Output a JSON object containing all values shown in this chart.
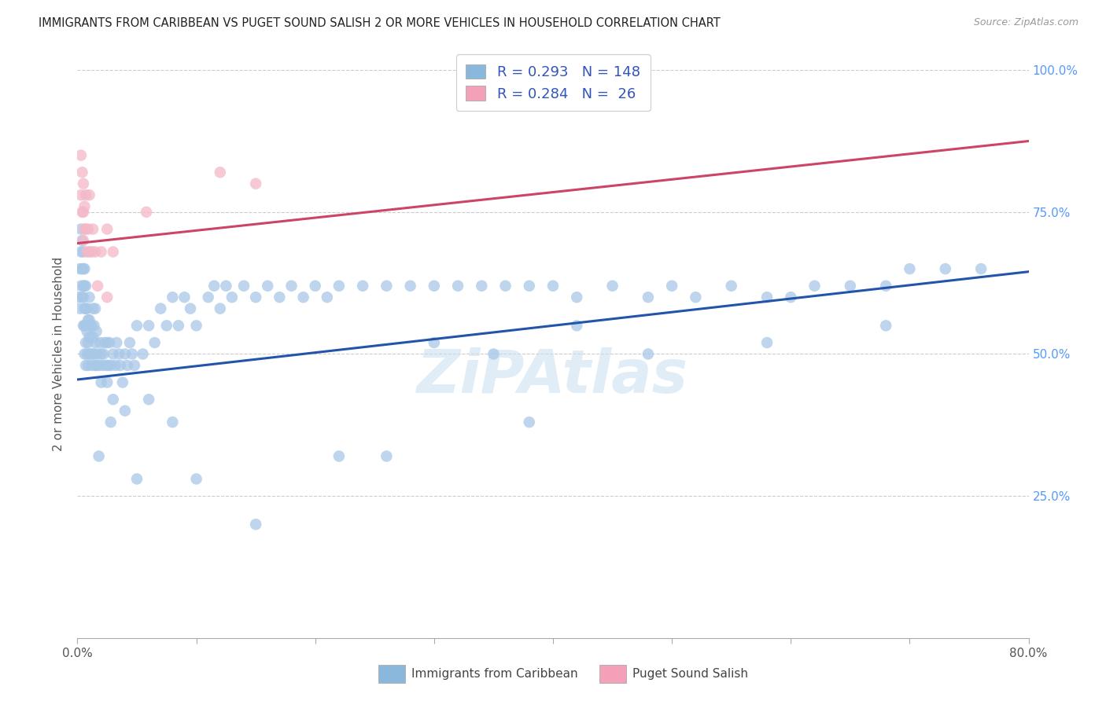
{
  "title": "IMMIGRANTS FROM CARIBBEAN VS PUGET SOUND SALISH 2 OR MORE VEHICLES IN HOUSEHOLD CORRELATION CHART",
  "source": "Source: ZipAtlas.com",
  "ylabel": "2 or more Vehicles in Household",
  "xlim": [
    0.0,
    0.8
  ],
  "ylim": [
    0.0,
    1.0
  ],
  "blue_color": "#a8c8e8",
  "pink_color": "#f4b8c8",
  "blue_line_color": "#2255aa",
  "pink_line_color": "#cc4466",
  "blue_legend_color": "#8ab8dc",
  "pink_legend_color": "#f4a0b8",
  "watermark": "ZiPAtlas",
  "legend_label_blue": "Immigrants from Caribbean",
  "legend_label_pink": "Puget Sound Salish",
  "blue_line_x0": 0.0,
  "blue_line_y0": 0.455,
  "blue_line_x1": 0.8,
  "blue_line_y1": 0.645,
  "pink_line_x0": 0.0,
  "pink_line_y0": 0.695,
  "pink_line_x1": 0.8,
  "pink_line_y1": 0.875,
  "blue_scatter_x": [
    0.001,
    0.002,
    0.002,
    0.003,
    0.003,
    0.003,
    0.004,
    0.004,
    0.004,
    0.005,
    0.005,
    0.005,
    0.005,
    0.005,
    0.006,
    0.006,
    0.006,
    0.006,
    0.006,
    0.007,
    0.007,
    0.007,
    0.007,
    0.007,
    0.008,
    0.008,
    0.008,
    0.009,
    0.009,
    0.009,
    0.01,
    0.01,
    0.01,
    0.01,
    0.011,
    0.011,
    0.012,
    0.012,
    0.013,
    0.013,
    0.013,
    0.014,
    0.014,
    0.015,
    0.015,
    0.015,
    0.016,
    0.016,
    0.017,
    0.018,
    0.019,
    0.02,
    0.02,
    0.021,
    0.022,
    0.023,
    0.024,
    0.025,
    0.025,
    0.026,
    0.027,
    0.028,
    0.03,
    0.03,
    0.032,
    0.033,
    0.035,
    0.036,
    0.038,
    0.04,
    0.042,
    0.044,
    0.046,
    0.048,
    0.05,
    0.055,
    0.06,
    0.065,
    0.07,
    0.075,
    0.08,
    0.085,
    0.09,
    0.095,
    0.1,
    0.11,
    0.115,
    0.12,
    0.125,
    0.13,
    0.14,
    0.15,
    0.16,
    0.17,
    0.18,
    0.19,
    0.2,
    0.21,
    0.22,
    0.24,
    0.26,
    0.28,
    0.3,
    0.32,
    0.34,
    0.36,
    0.38,
    0.4,
    0.42,
    0.45,
    0.48,
    0.5,
    0.52,
    0.55,
    0.58,
    0.6,
    0.62,
    0.65,
    0.68,
    0.7,
    0.73,
    0.76,
    0.35,
    0.15,
    0.48,
    0.22,
    0.26,
    0.38,
    0.1,
    0.05,
    0.028,
    0.018,
    0.04,
    0.06,
    0.08,
    0.3,
    0.58,
    0.42,
    0.68
  ],
  "blue_scatter_y": [
    0.6,
    0.58,
    0.65,
    0.62,
    0.68,
    0.72,
    0.6,
    0.65,
    0.7,
    0.55,
    0.6,
    0.62,
    0.65,
    0.68,
    0.5,
    0.55,
    0.58,
    0.62,
    0.65,
    0.48,
    0.52,
    0.55,
    0.58,
    0.62,
    0.5,
    0.54,
    0.58,
    0.48,
    0.52,
    0.56,
    0.5,
    0.53,
    0.56,
    0.6,
    0.5,
    0.55,
    0.48,
    0.55,
    0.5,
    0.53,
    0.58,
    0.5,
    0.55,
    0.48,
    0.52,
    0.58,
    0.48,
    0.54,
    0.5,
    0.48,
    0.52,
    0.45,
    0.5,
    0.48,
    0.5,
    0.52,
    0.48,
    0.45,
    0.52,
    0.48,
    0.52,
    0.48,
    0.42,
    0.5,
    0.48,
    0.52,
    0.5,
    0.48,
    0.45,
    0.5,
    0.48,
    0.52,
    0.5,
    0.48,
    0.55,
    0.5,
    0.55,
    0.52,
    0.58,
    0.55,
    0.6,
    0.55,
    0.6,
    0.58,
    0.55,
    0.6,
    0.62,
    0.58,
    0.62,
    0.6,
    0.62,
    0.6,
    0.62,
    0.6,
    0.62,
    0.6,
    0.62,
    0.6,
    0.62,
    0.62,
    0.62,
    0.62,
    0.62,
    0.62,
    0.62,
    0.62,
    0.62,
    0.62,
    0.6,
    0.62,
    0.6,
    0.62,
    0.6,
    0.62,
    0.6,
    0.6,
    0.62,
    0.62,
    0.62,
    0.65,
    0.65,
    0.65,
    0.5,
    0.2,
    0.5,
    0.32,
    0.32,
    0.38,
    0.28,
    0.28,
    0.38,
    0.32,
    0.4,
    0.42,
    0.38,
    0.52,
    0.52,
    0.55,
    0.55
  ],
  "pink_scatter_x": [
    0.003,
    0.003,
    0.004,
    0.004,
    0.005,
    0.005,
    0.005,
    0.006,
    0.006,
    0.007,
    0.007,
    0.008,
    0.009,
    0.01,
    0.01,
    0.012,
    0.013,
    0.015,
    0.017,
    0.02,
    0.025,
    0.025,
    0.03,
    0.058,
    0.12,
    0.15
  ],
  "pink_scatter_y": [
    0.78,
    0.85,
    0.75,
    0.82,
    0.7,
    0.75,
    0.8,
    0.72,
    0.76,
    0.72,
    0.78,
    0.68,
    0.72,
    0.68,
    0.78,
    0.68,
    0.72,
    0.68,
    0.62,
    0.68,
    0.72,
    0.6,
    0.68,
    0.75,
    0.82,
    0.8
  ]
}
